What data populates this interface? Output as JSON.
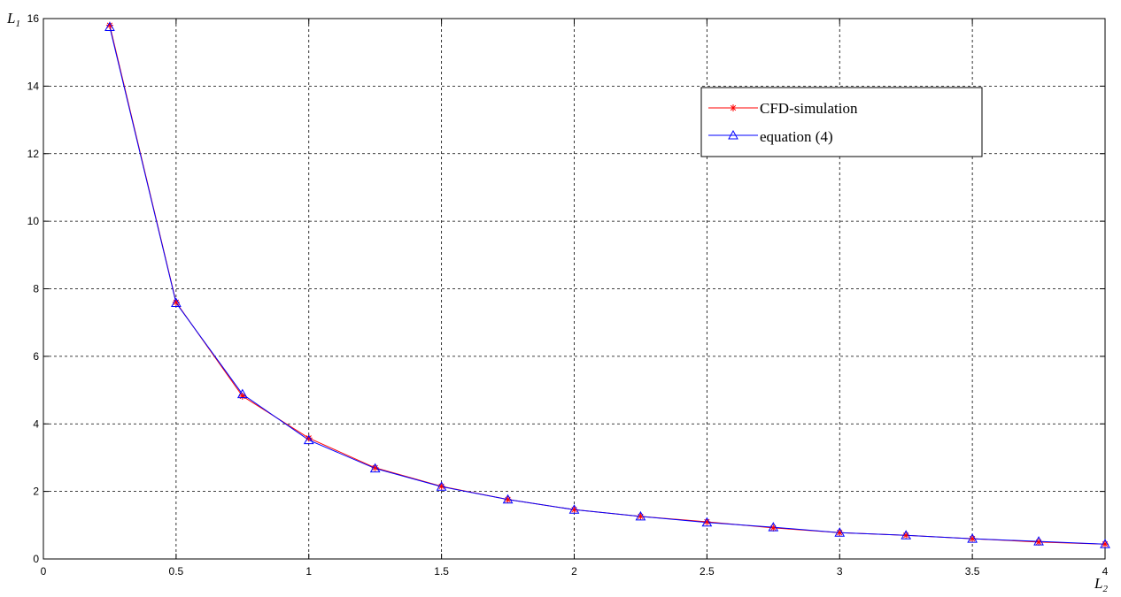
{
  "chart_data": {
    "type": "line",
    "xlabel": {
      "var": "L",
      "sub": "2"
    },
    "ylabel": {
      "var": "L",
      "sub": "1"
    },
    "xlim": [
      0,
      4
    ],
    "ylim": [
      0,
      16
    ],
    "xticks": [
      0,
      0.5,
      1,
      1.5,
      2,
      2.5,
      3,
      3.5,
      4
    ],
    "yticks": [
      0,
      2,
      4,
      6,
      8,
      10,
      12,
      14,
      16
    ],
    "grid": true,
    "legend_position": "top-right",
    "series": [
      {
        "name": "CFD-simulation",
        "color": "#ff0000",
        "marker": "asterisk",
        "x": [
          0.25,
          0.5,
          0.75,
          1,
          1.25,
          1.5,
          1.75,
          2,
          2.25,
          2.5,
          2.75,
          3,
          3.25,
          3.5,
          3.75,
          4
        ],
        "y": [
          15.8,
          7.6,
          4.82,
          3.58,
          2.7,
          2.15,
          1.76,
          1.46,
          1.26,
          1.1,
          0.92,
          0.78,
          0.7,
          0.6,
          0.5,
          0.44
        ]
      },
      {
        "name": "equation (4)",
        "color": "#0000ff",
        "marker": "triangle",
        "x": [
          0.25,
          0.5,
          0.75,
          1,
          1.25,
          1.5,
          1.75,
          2,
          2.25,
          2.5,
          2.75,
          3,
          3.25,
          3.5,
          3.75,
          4
        ],
        "y": [
          15.75,
          7.58,
          4.88,
          3.52,
          2.68,
          2.14,
          1.76,
          1.46,
          1.26,
          1.08,
          0.94,
          0.78,
          0.7,
          0.6,
          0.52,
          0.44
        ]
      }
    ]
  }
}
